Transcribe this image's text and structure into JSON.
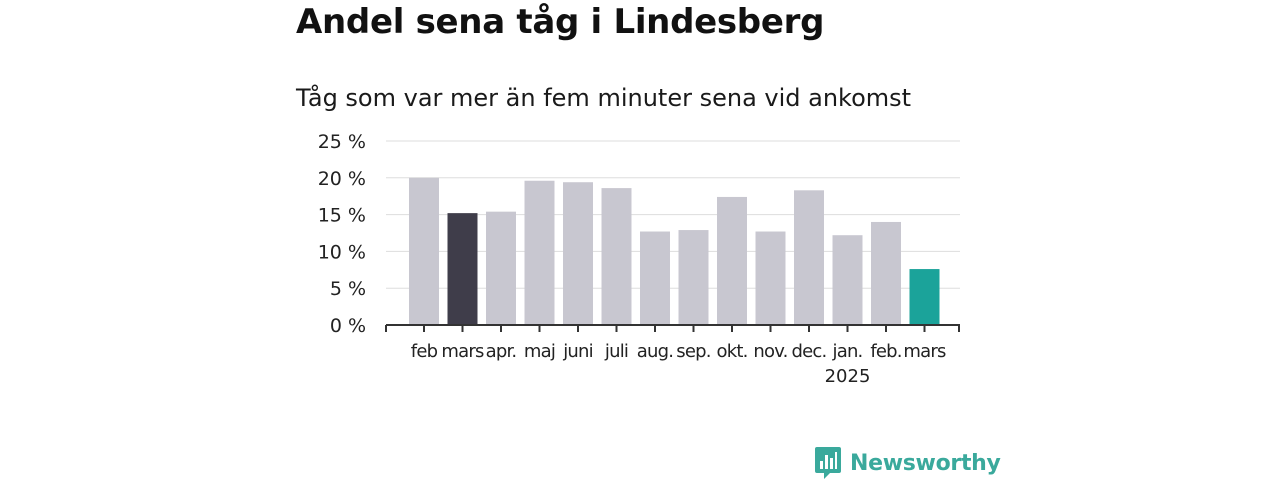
{
  "title": "Andel sena tåg i Lindesberg",
  "subtitle": "Tåg som var mer än fem minuter sena vid ankomst",
  "brand": "Newsworthy",
  "colors": {
    "default_bar": "#c8c7d0",
    "highlight_previous": "#3f3d4a",
    "highlight_current": "#1ba39a",
    "grid": "#dddddd",
    "axis": "#333333",
    "brand": "#3aa99c"
  },
  "chart_data": {
    "type": "bar",
    "categories": [
      "feb",
      "mars",
      "apr.",
      "maj",
      "juni",
      "juli",
      "aug.",
      "sep.",
      "okt.",
      "nov.",
      "dec.",
      "jan.",
      "feb.",
      "mars"
    ],
    "category_sublabels": [
      "",
      "",
      "",
      "",
      "",
      "",
      "",
      "",
      "",
      "",
      "",
      "2025",
      "",
      ""
    ],
    "values": [
      20.0,
      15.2,
      15.4,
      19.6,
      19.4,
      18.6,
      12.7,
      12.9,
      17.4,
      12.7,
      18.3,
      12.2,
      14.0,
      7.6
    ],
    "highlight": [
      "default",
      "previous",
      "default",
      "default",
      "default",
      "default",
      "default",
      "default",
      "default",
      "default",
      "default",
      "default",
      "default",
      "current"
    ],
    "yticks": [
      "0 %",
      "5 %",
      "10 %",
      "15 %",
      "20 %",
      "25 %"
    ],
    "ylim": [
      0,
      25
    ],
    "grid": true,
    "legend": "none",
    "title": "Andel sena tåg i Lindesberg",
    "subtitle": "Tåg som var mer än fem minuter sena vid ankomst",
    "xlabel": "",
    "ylabel": ""
  }
}
